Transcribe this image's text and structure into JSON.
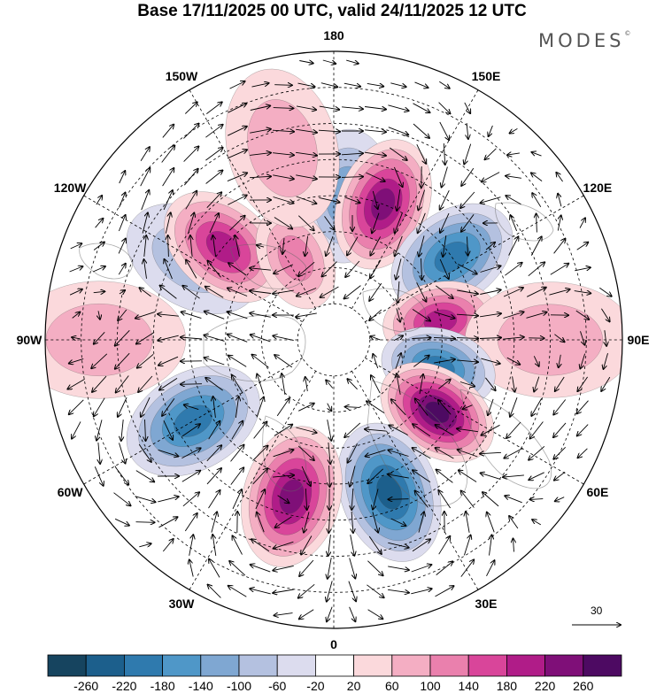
{
  "title": "Base 17/11/2025 00 UTC, valid 24/11/2025 12 UTC",
  "brand": "MODES",
  "brand_mark": "©",
  "longitude_labels": [
    "180",
    "150E",
    "120E",
    "90E",
    "60E",
    "30E",
    "0",
    "30W",
    "60W",
    "90W",
    "120W",
    "150W"
  ],
  "vector_reference": {
    "value": "30"
  },
  "colorbar": {
    "ticks": [
      "-260",
      "-220",
      "-180",
      "-140",
      "-100",
      "-60",
      "-20",
      "20",
      "60",
      "100",
      "140",
      "180",
      "220",
      "260"
    ],
    "colors": [
      "#16445f",
      "#1c5f8c",
      "#2f7aae",
      "#4f97c8",
      "#7fa7d2",
      "#b4c1e0",
      "#dcdcee",
      "#ffffff",
      "#fbd9dc",
      "#f4aec3",
      "#ea80ad",
      "#d9459a",
      "#b01c88",
      "#7f0f78",
      "#4d0a62"
    ]
  },
  "chart_data": {
    "type": "heatmap",
    "projection": "north-polar-stereographic",
    "title": "Base 17/11/2025 00 UTC, valid 24/11/2025 12 UTC",
    "color_scale_min": -260,
    "color_scale_max": 260,
    "color_scale_step": 40,
    "anomaly_centers": [
      {
        "lon_label": "175E",
        "lat_label": "50N",
        "value": -100
      },
      {
        "lon_label": "160E",
        "lat_label": "50N",
        "value": 220
      },
      {
        "lon_label": "125E",
        "lat_label": "50N",
        "value": -180
      },
      {
        "lon_label": "100E",
        "lat_label": "60N",
        "value": 180
      },
      {
        "lon_label": "90E",
        "lat_label": "30N",
        "value": 60
      },
      {
        "lon_label": "75E",
        "lat_label": "60N",
        "value": -200
      },
      {
        "lon_label": "55E",
        "lat_label": "55N",
        "value": 260
      },
      {
        "lon_label": "20E",
        "lat_label": "45N",
        "value": -250
      },
      {
        "lon_label": "15W",
        "lat_label": "45N",
        "value": 220
      },
      {
        "lon_label": "60W",
        "lat_label": "45N",
        "value": -180
      },
      {
        "lon_label": "90W",
        "lat_label": "25N",
        "value": 60
      },
      {
        "lon_label": "120W",
        "lat_label": "45N",
        "value": -60
      },
      {
        "lon_label": "130W",
        "lat_label": "50N",
        "value": 180
      },
      {
        "lon_label": "155W",
        "lat_label": "65N",
        "value": 100
      },
      {
        "lon_label": "165W",
        "lat_label": "35N",
        "value": 60
      }
    ]
  }
}
